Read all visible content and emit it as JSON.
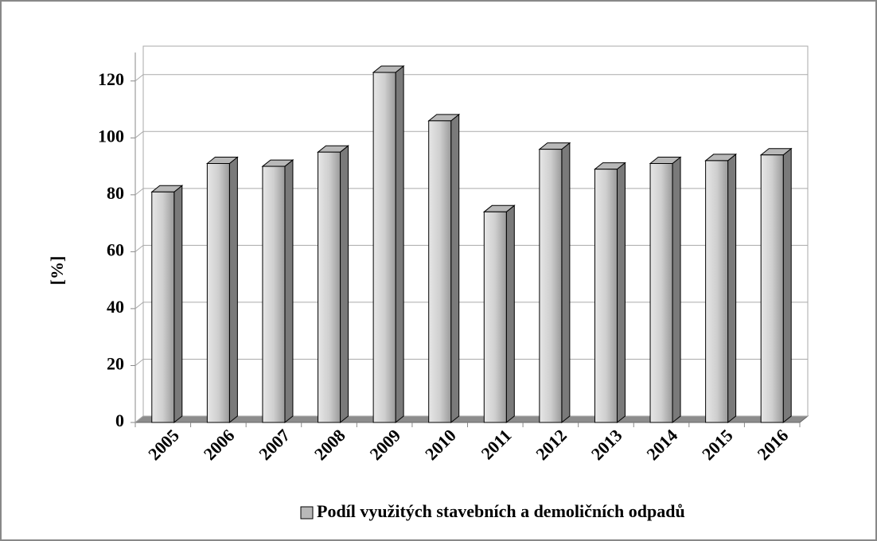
{
  "chart_data": {
    "type": "bar",
    "ylabel": "[%]",
    "categories": [
      "2005",
      "2006",
      "2007",
      "2008",
      "2009",
      "2010",
      "2011",
      "2012",
      "2013",
      "2014",
      "2015",
      "2016"
    ],
    "series": [
      {
        "name": "Podíl využitých stavebních a demoličních odpadů",
        "color": "#b8b8b8",
        "values": [
          81,
          91,
          90,
          95,
          123,
          106,
          74,
          96,
          89,
          91,
          92,
          94
        ]
      }
    ],
    "ylim": [
      0,
      130
    ],
    "yticks": [
      0,
      20,
      40,
      60,
      80,
      100,
      120
    ],
    "grid": true,
    "legend": "bottom"
  }
}
